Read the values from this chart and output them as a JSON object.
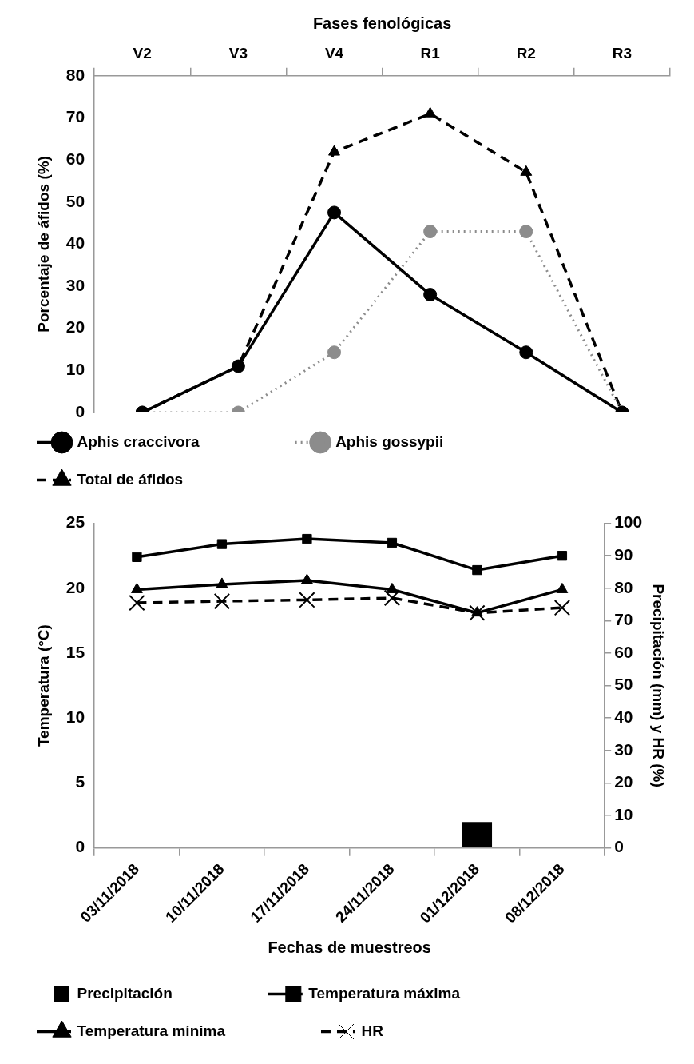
{
  "chart_data": [
    {
      "type": "line",
      "xlabel": "Fases fenológicas",
      "ylabel": "Porcentaje de áfidos (%)",
      "categories": [
        "V2",
        "V3",
        "V4",
        "R1",
        "R2",
        "R3"
      ],
      "ylim": [
        0,
        80
      ],
      "yticks": [
        0,
        10,
        20,
        30,
        40,
        50,
        60,
        70,
        80
      ],
      "grid": false,
      "legend": "bottom",
      "series": [
        {
          "name": "Aphis craccivora",
          "color": "#000000",
          "marker": "circle",
          "line_style": "solid",
          "values": [
            0,
            11,
            47.5,
            28,
            14.3,
            0
          ]
        },
        {
          "name": "Aphis gossypii",
          "color": "#8c8c8c",
          "marker": "circle",
          "line_style": "dotted",
          "values": [
            0,
            0,
            14.3,
            43,
            43,
            0
          ]
        },
        {
          "name": "Total de áfidos",
          "color": "#000000",
          "marker": "triangle",
          "line_style": "dashed",
          "values": [
            0,
            11,
            61.9,
            71,
            57.1,
            0
          ]
        }
      ]
    },
    {
      "type": "line",
      "xlabel": "Fechas de muestreos",
      "ylabel": "Temperatura (°C)",
      "y2label": "Precipitación (mm) y HR (%)",
      "categories": [
        "03/11/2018",
        "10/11/2018",
        "17/11/2018",
        "24/11/2018",
        "01/12/2018",
        "08/12/2018"
      ],
      "ylim": [
        0,
        25
      ],
      "yticks": [
        0,
        5,
        10,
        15,
        20,
        25
      ],
      "y2lim": [
        0,
        100
      ],
      "y2ticks": [
        0,
        10,
        20,
        30,
        40,
        50,
        60,
        70,
        80,
        90,
        100
      ],
      "grid": false,
      "legend": "bottom",
      "series": [
        {
          "name": "Precipitación",
          "type": "bar",
          "axis": "y2",
          "color": "#000000",
          "values": [
            0,
            0,
            0,
            0,
            8,
            0
          ]
        },
        {
          "name": "Temperatura máxima",
          "color": "#000000",
          "marker": "square",
          "line_style": "solid",
          "values": [
            22.4,
            23.4,
            23.8,
            23.5,
            21.4,
            22.5
          ]
        },
        {
          "name": "Temperatura mínima",
          "color": "#000000",
          "marker": "triangle",
          "line_style": "solid",
          "values": [
            19.9,
            20.3,
            20.6,
            19.9,
            18.1,
            19.9
          ]
        },
        {
          "name": "HR",
          "color": "#000000",
          "marker": "cross",
          "line_style": "dashed",
          "axis": "y2",
          "values": [
            75.5,
            76,
            76.4,
            77,
            72.4,
            74
          ]
        }
      ]
    }
  ]
}
